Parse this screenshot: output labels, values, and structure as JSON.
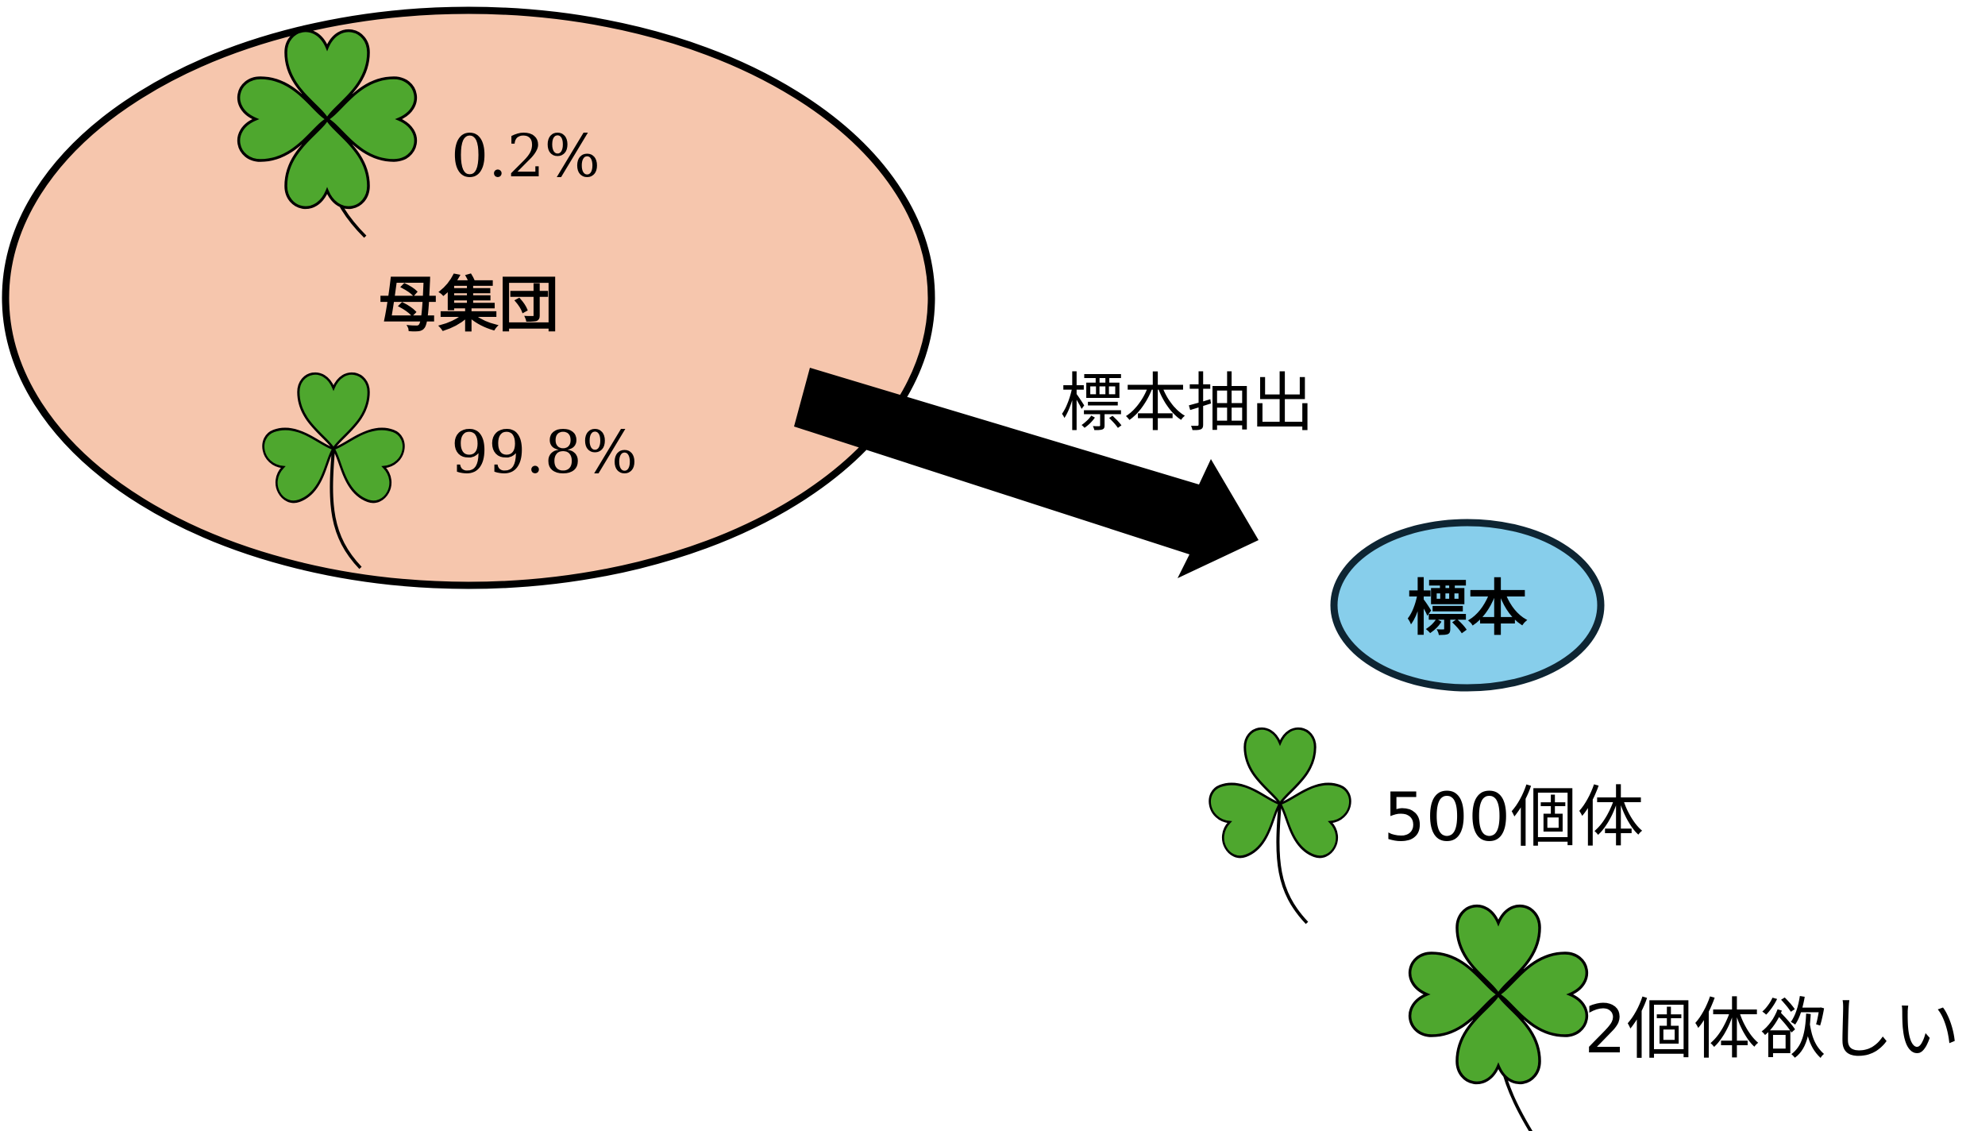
{
  "population": {
    "label": "母集団",
    "four_leaf_percent": "0.2%",
    "three_leaf_percent": "99.8%"
  },
  "sampling": {
    "arrow_label": "標本抽出"
  },
  "sample": {
    "label": "標本",
    "count_text": "500個体",
    "want_text": "2個体欲しい"
  },
  "colors": {
    "population_fill": "#f6c6ad",
    "sample_fill": "#87ceeb",
    "sample_border": "#0e2533",
    "leaf_fill": "#4ea72e",
    "outline": "#000000"
  },
  "icons": [
    "four-leaf-clover-icon",
    "three-leaf-clover-icon"
  ]
}
